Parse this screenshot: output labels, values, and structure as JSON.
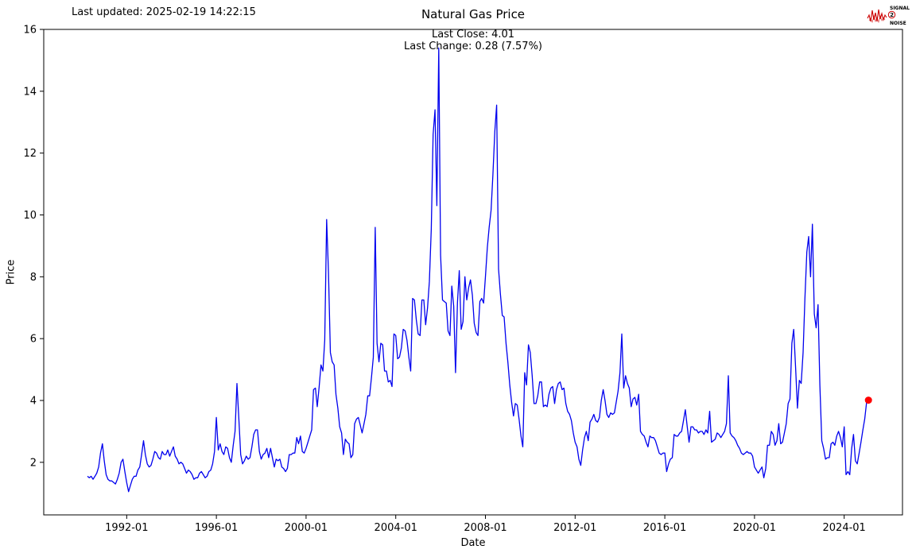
{
  "header": {
    "last_updated": "Last updated: 2025-02-19 14:22:15",
    "title": "Natural Gas Price",
    "subtitle_close": "Last Close: 4.01",
    "subtitle_change": "Last Change: 0.28 (7.57%)"
  },
  "logo": {
    "line1": "SIGNAL",
    "line2": "2",
    "line3": "NOISE",
    "color": "#cc0000"
  },
  "chart_data": {
    "type": "line",
    "title": "Natural Gas Price",
    "xlabel": "Date",
    "ylabel": "Price",
    "xlim": [
      1988.3,
      2026.6
    ],
    "ylim": [
      0.3,
      16
    ],
    "grid": false,
    "legend": "none",
    "x_tick_labels": [
      "1992-01",
      "1996-01",
      "2000-01",
      "2004-01",
      "2008-01",
      "2012-01",
      "2016-01",
      "2020-01",
      "2024-01"
    ],
    "y_ticks": [
      2,
      4,
      6,
      8,
      10,
      12,
      14,
      16
    ],
    "line_color": "#0000ee",
    "last_point_color": "#ff0000",
    "annotations": [
      "Last Close: 4.01",
      "Last Change: 0.28 (7.57%)"
    ],
    "series_name": "Natural Gas Price",
    "start": "1990-04",
    "frequency": "monthly",
    "last_close": 4.01,
    "last_change": "0.28 (7.57%)",
    "values": [
      1.55,
      1.5,
      1.55,
      1.45,
      1.55,
      1.65,
      1.85,
      2.3,
      2.6,
      2.05,
      1.6,
      1.45,
      1.4,
      1.4,
      1.35,
      1.3,
      1.45,
      1.65,
      2.0,
      2.1,
      1.7,
      1.35,
      1.05,
      1.25,
      1.45,
      1.55,
      1.55,
      1.75,
      1.85,
      2.25,
      2.7,
      2.25,
      1.95,
      1.85,
      1.9,
      2.1,
      2.35,
      2.3,
      2.15,
      2.1,
      2.35,
      2.25,
      2.25,
      2.4,
      2.2,
      2.35,
      2.5,
      2.2,
      2.1,
      1.95,
      2.0,
      1.95,
      1.8,
      1.65,
      1.75,
      1.7,
      1.6,
      1.45,
      1.5,
      1.5,
      1.65,
      1.7,
      1.6,
      1.5,
      1.55,
      1.7,
      1.75,
      1.95,
      2.35,
      3.45,
      2.4,
      2.6,
      2.35,
      2.25,
      2.5,
      2.45,
      2.15,
      2.0,
      2.55,
      3.0,
      4.55,
      3.45,
      2.25,
      1.95,
      2.05,
      2.2,
      2.1,
      2.15,
      2.5,
      2.9,
      3.05,
      3.05,
      2.35,
      2.1,
      2.25,
      2.3,
      2.45,
      2.15,
      2.45,
      2.15,
      1.85,
      2.1,
      2.05,
      2.1,
      1.85,
      1.8,
      1.7,
      1.8,
      2.25,
      2.25,
      2.3,
      2.3,
      2.8,
      2.6,
      2.85,
      2.35,
      2.3,
      2.45,
      2.65,
      2.85,
      3.05,
      4.35,
      4.4,
      3.8,
      4.45,
      5.15,
      4.95,
      5.95,
      9.85,
      8.15,
      5.55,
      5.25,
      5.15,
      4.2,
      3.75,
      3.15,
      2.95,
      2.25,
      2.75,
      2.65,
      2.6,
      2.15,
      2.25,
      3.25,
      3.4,
      3.45,
      3.2,
      2.95,
      3.25,
      3.55,
      4.15,
      4.15,
      4.75,
      5.4,
      9.6,
      5.85,
      5.25,
      5.85,
      5.8,
      4.95,
      4.95,
      4.6,
      4.65,
      4.45,
      6.15,
      6.1,
      5.35,
      5.4,
      5.7,
      6.3,
      6.25,
      5.95,
      5.4,
      4.95,
      7.3,
      7.25,
      6.6,
      6.15,
      6.1,
      7.25,
      7.25,
      6.45,
      7.0,
      7.85,
      9.55,
      12.6,
      13.4,
      10.3,
      15.4,
      8.7,
      7.25,
      7.2,
      7.15,
      6.25,
      6.1,
      7.7,
      7.05,
      4.9,
      7.15,
      8.2,
      6.3,
      6.55,
      8.0,
      7.25,
      7.65,
      7.9,
      7.4,
      6.5,
      6.2,
      6.1,
      7.2,
      7.3,
      7.15,
      8.0,
      8.95,
      9.6,
      10.15,
      11.3,
      12.7,
      13.55,
      8.25,
      7.45,
      6.75,
      6.7,
      5.85,
      5.25,
      4.5,
      3.95,
      3.5,
      3.9,
      3.85,
      3.4,
      2.85,
      2.5,
      4.9,
      4.5,
      5.8,
      5.55,
      4.8,
      3.9,
      3.9,
      4.15,
      4.6,
      4.6,
      3.8,
      3.85,
      3.8,
      4.2,
      4.4,
      4.45,
      3.9,
      4.35,
      4.55,
      4.6,
      4.35,
      4.4,
      3.9,
      3.65,
      3.55,
      3.35,
      2.95,
      2.65,
      2.5,
      2.1,
      1.9,
      2.4,
      2.8,
      3.0,
      2.7,
      3.3,
      3.4,
      3.55,
      3.35,
      3.3,
      3.45,
      4.0,
      4.35,
      4.0,
      3.55,
      3.45,
      3.6,
      3.55,
      3.6,
      3.95,
      4.3,
      4.9,
      6.15,
      4.4,
      4.8,
      4.55,
      4.4,
      3.8,
      4.05,
      4.1,
      3.85,
      4.2,
      3.0,
      2.9,
      2.85,
      2.65,
      2.5,
      2.85,
      2.8,
      2.8,
      2.7,
      2.5,
      2.3,
      2.25,
      2.3,
      2.3,
      1.7,
      1.95,
      2.1,
      2.15,
      2.9,
      2.85,
      2.85,
      2.95,
      3.0,
      3.35,
      3.7,
      3.15,
      2.65,
      3.15,
      3.15,
      3.05,
      3.05,
      2.95,
      3.0,
      3.0,
      2.9,
      3.05,
      2.95,
      3.65,
      2.65,
      2.7,
      2.75,
      2.95,
      2.9,
      2.8,
      2.9,
      3.0,
      3.25,
      4.8,
      2.95,
      2.85,
      2.8,
      2.7,
      2.55,
      2.45,
      2.3,
      2.25,
      2.3,
      2.35,
      2.3,
      2.3,
      2.2,
      1.85,
      1.75,
      1.65,
      1.75,
      1.85,
      1.5,
      1.8,
      2.55,
      2.55,
      3.0,
      2.9,
      2.55,
      2.7,
      3.25,
      2.6,
      2.65,
      2.95,
      3.25,
      3.9,
      4.05,
      5.85,
      6.3,
      5.05,
      3.75,
      4.65,
      4.55,
      5.55,
      7.3,
      8.8,
      9.3,
      8.0,
      9.7,
      6.8,
      6.35,
      7.1,
      4.5,
      2.7,
      2.45,
      2.1,
      2.15,
      2.15,
      2.6,
      2.65,
      2.55,
      2.85,
      3.0,
      2.8,
      2.5,
      3.15,
      1.6,
      1.7,
      1.6,
      2.45,
      2.9,
      2.05,
      1.95,
      2.3,
      2.65,
      3.05,
      3.4,
      3.95,
      4.01
    ]
  }
}
